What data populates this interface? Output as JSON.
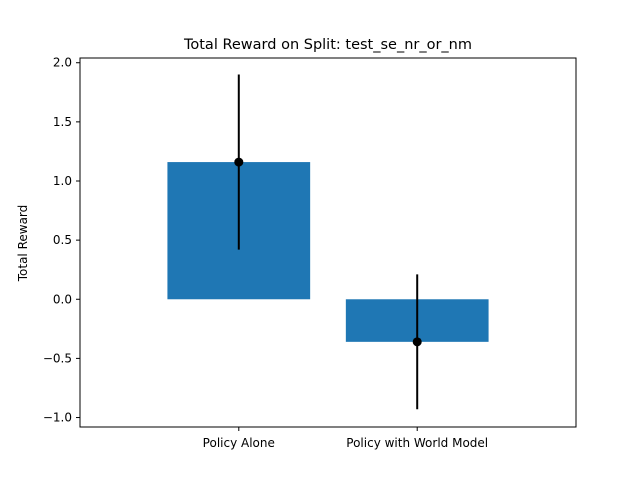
{
  "chart_data": {
    "type": "bar",
    "title": "Total Reward on Split: test_se_nr_or_nm",
    "xlabel": "",
    "ylabel": "Total Reward",
    "categories": [
      "Policy Alone",
      "Policy with World Model"
    ],
    "values": [
      1.16,
      -0.36
    ],
    "errors": [
      0.74,
      0.57
    ],
    "ylim": [
      -1.08,
      2.04
    ],
    "yticks": [
      -1.0,
      -0.5,
      0.0,
      0.5,
      1.0,
      1.5,
      2.0
    ],
    "ytick_labels": [
      "−1.0",
      "−0.5",
      "0.0",
      "0.5",
      "1.0",
      "1.5",
      "2.0"
    ],
    "grid": false,
    "colors": {
      "bar": "#1f77b4",
      "error": "#000000"
    }
  }
}
